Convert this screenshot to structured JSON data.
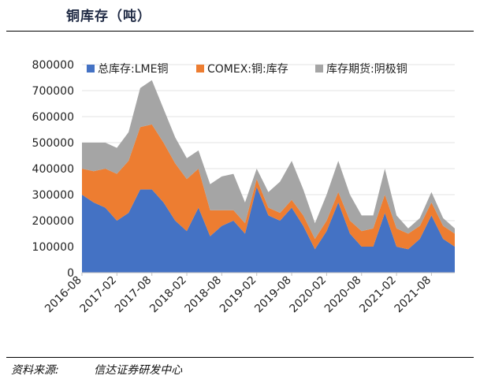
{
  "title": "铜库存（吨）",
  "source": {
    "label": "资料来源:",
    "org": "信达证券研发中心"
  },
  "colors": {
    "lme": "#4472C4",
    "comex": "#ED7D31",
    "shfe": "#A5A5A5"
  },
  "chart_data": {
    "type": "area",
    "stacked": true,
    "title": "",
    "xlabel": "",
    "ylabel": "",
    "ylim": [
      0,
      800000
    ],
    "yticks": [
      0,
      100000,
      200000,
      300000,
      400000,
      500000,
      600000,
      700000,
      800000
    ],
    "ytick_labels": [
      "0",
      "100000",
      "200000",
      "300000",
      "400000",
      "500000",
      "600000",
      "700000",
      "800000"
    ],
    "xtick_labels": [
      "2016-08",
      "2017-02",
      "2017-08",
      "2018-02",
      "2018-08",
      "2019-02",
      "2019-08",
      "2020-02",
      "2020-08",
      "2021-02",
      "2021-08"
    ],
    "legend_position": "top",
    "x": [
      "2016-08",
      "2016-10",
      "2016-12",
      "2017-02",
      "2017-04",
      "2017-06",
      "2017-08",
      "2017-10",
      "2017-12",
      "2018-02",
      "2018-04",
      "2018-06",
      "2018-08",
      "2018-10",
      "2018-12",
      "2019-02",
      "2019-04",
      "2019-06",
      "2019-08",
      "2019-10",
      "2019-12",
      "2020-02",
      "2020-04",
      "2020-06",
      "2020-08",
      "2020-10",
      "2020-12",
      "2021-02",
      "2021-04",
      "2021-06",
      "2021-08",
      "2021-10",
      "2021-12"
    ],
    "series": [
      {
        "name": "总库存:LME铜",
        "values": [
          300000,
          270000,
          250000,
          200000,
          230000,
          320000,
          320000,
          270000,
          200000,
          160000,
          250000,
          140000,
          180000,
          200000,
          150000,
          330000,
          220000,
          200000,
          250000,
          180000,
          90000,
          160000,
          270000,
          150000,
          100000,
          100000,
          230000,
          100000,
          90000,
          130000,
          220000,
          130000,
          100000
        ]
      },
      {
        "name": "COMEX:铜:库存",
        "values": [
          100000,
          120000,
          150000,
          180000,
          200000,
          240000,
          250000,
          230000,
          220000,
          200000,
          150000,
          100000,
          60000,
          40000,
          40000,
          30000,
          30000,
          30000,
          30000,
          40000,
          40000,
          40000,
          40000,
          50000,
          60000,
          70000,
          70000,
          70000,
          60000,
          50000,
          50000,
          50000,
          50000
        ]
      },
      {
        "name": "库存期货:阴极铜",
        "values": [
          100000,
          110000,
          100000,
          100000,
          110000,
          150000,
          170000,
          130000,
          100000,
          80000,
          70000,
          100000,
          130000,
          140000,
          80000,
          40000,
          60000,
          120000,
          150000,
          100000,
          60000,
          100000,
          120000,
          100000,
          60000,
          50000,
          100000,
          50000,
          20000,
          30000,
          40000,
          30000,
          20000
        ]
      }
    ]
  }
}
